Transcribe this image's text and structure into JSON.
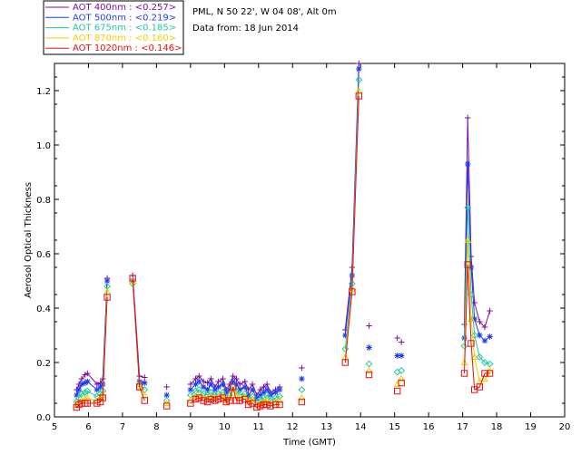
{
  "chart_data": {
    "type": "line",
    "info": {
      "station": "PML, N 50 22', W 04 08', Alt 0m",
      "date": "Data from: 18 Jun 2014"
    },
    "xlabel": "Time (GMT)",
    "ylabel": "Aerosol Optical Thickness",
    "xlim": [
      5,
      20
    ],
    "ylim": [
      0,
      1.3
    ],
    "xticks": [
      "5",
      "6",
      "7",
      "8",
      "9",
      "10",
      "11",
      "12",
      "13",
      "14",
      "15",
      "16",
      "17",
      "18",
      "19",
      "20"
    ],
    "yticks": [
      "0.0",
      "0.2",
      "0.4",
      "0.6",
      "0.8",
      "1.0",
      "1.2"
    ],
    "x": [
      5.65,
      5.72,
      5.8,
      5.9,
      5.97,
      6.25,
      6.35,
      6.42,
      6.55,
      7.3,
      7.5,
      7.65,
      8.3,
      9.0,
      9.15,
      9.25,
      9.38,
      9.5,
      9.6,
      9.72,
      9.82,
      9.95,
      10.05,
      10.15,
      10.25,
      10.35,
      10.45,
      10.6,
      10.7,
      10.82,
      10.95,
      11.05,
      11.15,
      11.25,
      11.35,
      11.5,
      11.62,
      12.27,
      13.55,
      13.75,
      13.95,
      14.25,
      15.08,
      15.2,
      17.05,
      17.15,
      17.25,
      17.35,
      17.5,
      17.65,
      17.8
    ],
    "connected": [
      [
        0,
        8
      ],
      [
        9,
        11
      ],
      [
        13,
        36
      ],
      [
        38,
        40
      ],
      [
        44,
        50
      ]
    ],
    "series": [
      {
        "name": "AOT  400nm",
        "mean": "<0.257>",
        "color": "#7b0fa0",
        "marker": "plus",
        "values": [
          0.1,
          0.12,
          0.14,
          0.155,
          0.16,
          0.12,
          0.125,
          0.14,
          0.51,
          0.52,
          0.15,
          0.145,
          0.11,
          0.12,
          0.14,
          0.15,
          0.13,
          0.125,
          0.14,
          0.11,
          0.13,
          0.14,
          0.1,
          0.12,
          0.15,
          0.14,
          0.12,
          0.13,
          0.1,
          0.12,
          0.08,
          0.1,
          0.11,
          0.12,
          0.09,
          0.1,
          0.11,
          0.18,
          0.32,
          0.55,
          1.3,
          0.335,
          0.29,
          0.275,
          0.34,
          1.1,
          0.59,
          0.42,
          0.35,
          0.33,
          0.39
        ]
      },
      {
        "name": "AOT  500nm",
        "mean": "<0.219>",
        "color": "#1e3cf0",
        "marker": "star",
        "values": [
          0.08,
          0.1,
          0.12,
          0.125,
          0.13,
          0.1,
          0.11,
          0.12,
          0.5,
          0.5,
          0.13,
          0.125,
          0.08,
          0.1,
          0.12,
          0.13,
          0.11,
          0.1,
          0.12,
          0.1,
          0.11,
          0.12,
          0.09,
          0.1,
          0.13,
          0.12,
          0.1,
          0.11,
          0.08,
          0.1,
          0.07,
          0.08,
          0.09,
          0.1,
          0.08,
          0.09,
          0.1,
          0.14,
          0.3,
          0.52,
          1.28,
          0.255,
          0.225,
          0.225,
          0.29,
          0.93,
          0.55,
          0.36,
          0.3,
          0.28,
          0.295
        ]
      },
      {
        "name": "AOT  675nm",
        "mean": "<0.185>",
        "color": "#1ec8a0",
        "marker": "diamond",
        "values": [
          0.055,
          0.07,
          0.085,
          0.09,
          0.095,
          0.075,
          0.085,
          0.095,
          0.48,
          0.49,
          0.12,
          0.1,
          0.06,
          0.08,
          0.095,
          0.1,
          0.085,
          0.08,
          0.09,
          0.08,
          0.085,
          0.09,
          0.07,
          0.08,
          0.11,
          0.095,
          0.08,
          0.085,
          0.065,
          0.075,
          0.055,
          0.065,
          0.07,
          0.08,
          0.06,
          0.07,
          0.075,
          0.1,
          0.25,
          0.49,
          1.24,
          0.195,
          0.165,
          0.17,
          0.26,
          0.77,
          0.45,
          0.3,
          0.22,
          0.2,
          0.195
        ]
      },
      {
        "name": "AOT  870nm",
        "mean": "<0.160>",
        "color": "#f0d000",
        "marker": "triangle",
        "values": [
          0.045,
          0.055,
          0.06,
          0.065,
          0.07,
          0.06,
          0.07,
          0.08,
          0.46,
          0.5,
          0.11,
          0.08,
          0.05,
          0.06,
          0.075,
          0.08,
          0.07,
          0.065,
          0.075,
          0.07,
          0.075,
          0.08,
          0.06,
          0.07,
          0.1,
          0.08,
          0.07,
          0.075,
          0.055,
          0.065,
          0.045,
          0.05,
          0.055,
          0.06,
          0.05,
          0.055,
          0.06,
          0.07,
          0.22,
          0.47,
          1.2,
          0.17,
          0.12,
          0.14,
          0.2,
          0.65,
          0.36,
          0.22,
          0.13,
          0.14,
          0.17
        ]
      },
      {
        "name": "AOT 1020nm",
        "mean": "<0.146>",
        "color": "#e81010",
        "marker": "square",
        "values": [
          0.035,
          0.045,
          0.05,
          0.05,
          0.05,
          0.05,
          0.055,
          0.07,
          0.44,
          0.51,
          0.11,
          0.06,
          0.04,
          0.05,
          0.065,
          0.07,
          0.06,
          0.055,
          0.065,
          0.06,
          0.065,
          0.07,
          0.055,
          0.06,
          0.11,
          0.06,
          0.06,
          0.065,
          0.045,
          0.05,
          0.035,
          0.04,
          0.045,
          0.045,
          0.04,
          0.045,
          0.045,
          0.055,
          0.2,
          0.46,
          1.18,
          0.155,
          0.095,
          0.125,
          0.16,
          0.56,
          0.27,
          0.1,
          0.11,
          0.16,
          0.16
        ]
      }
    ]
  }
}
